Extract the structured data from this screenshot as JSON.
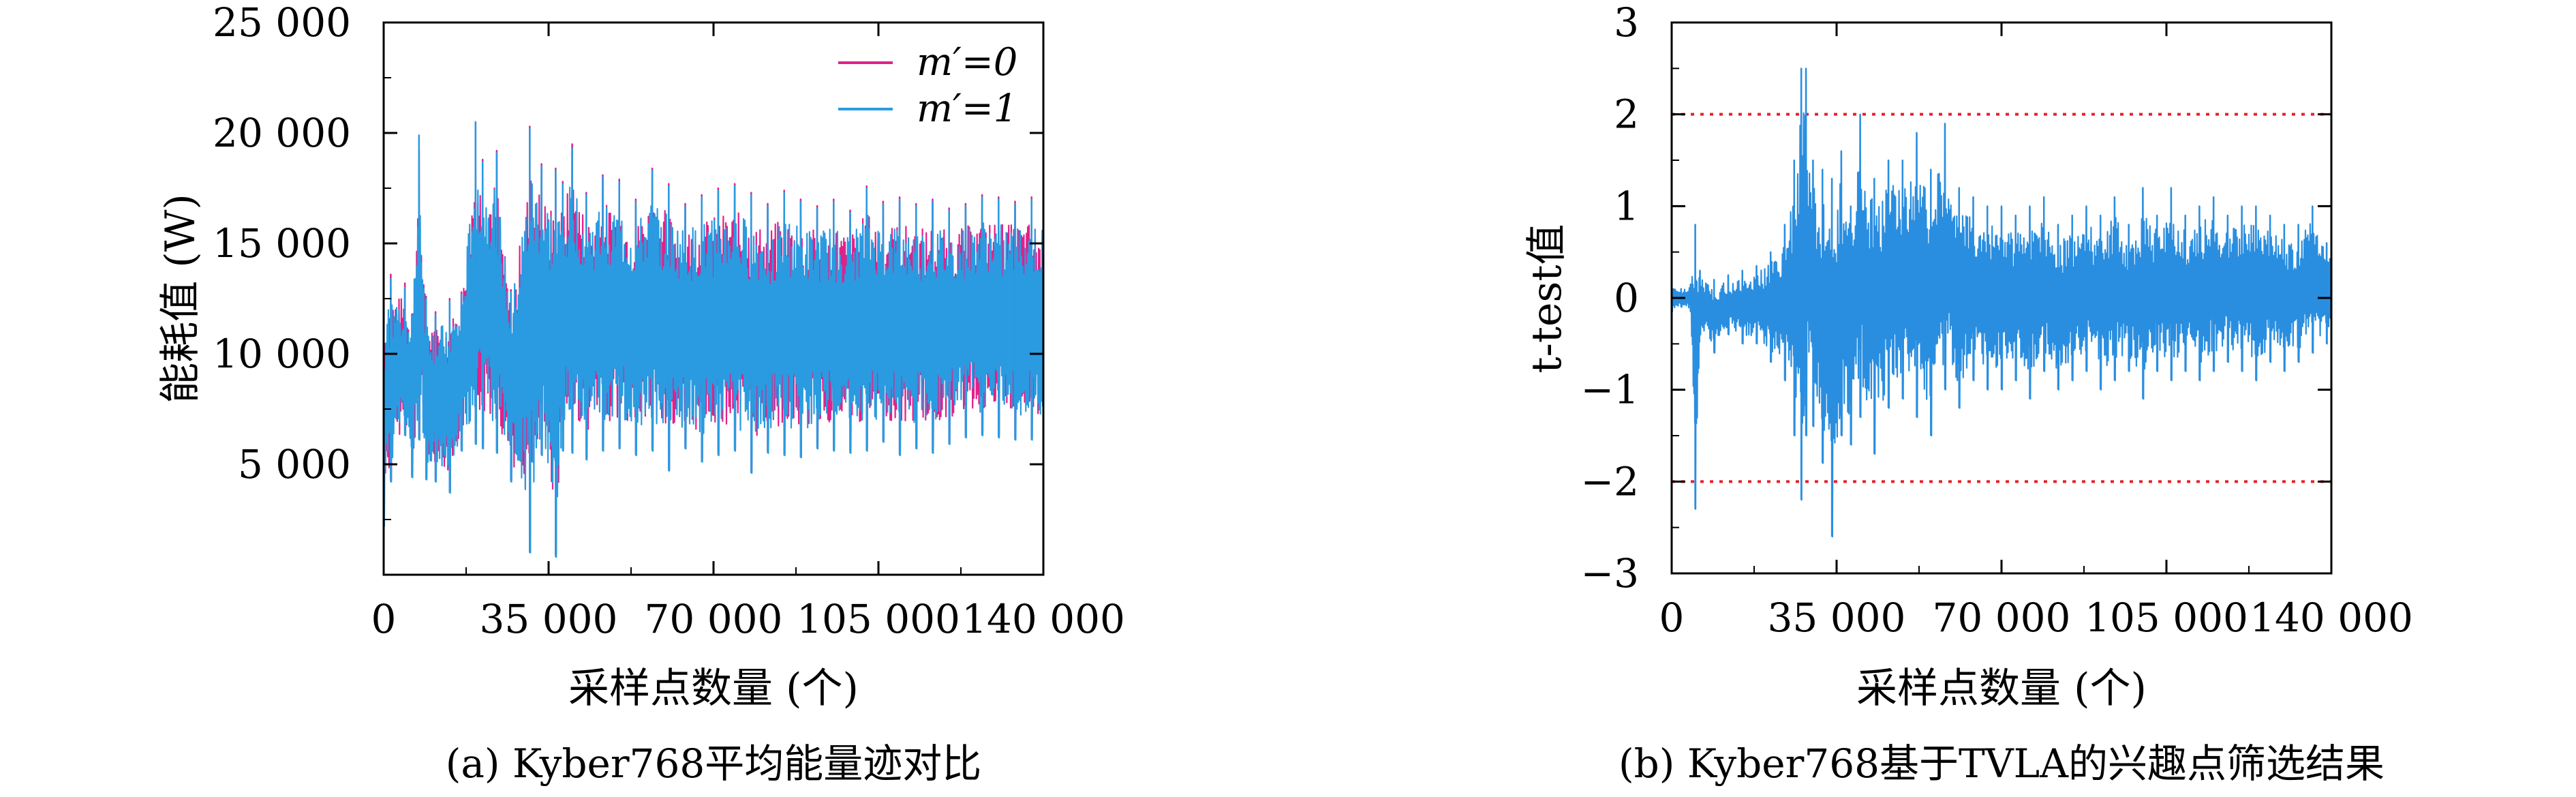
{
  "figure": {
    "caption_a": "(a) Kyber768平均能量迹对比",
    "caption_b": "(b) Kyber768基于TVLA的兴趣点筛选结果"
  },
  "chart_data": [
    {
      "type": "line",
      "xlabel": "采样点数量 (个)",
      "ylabel": "能耗值 (W)",
      "xlim": [
        0,
        140000
      ],
      "ylim": [
        0,
        25000
      ],
      "x_ticks": [
        {
          "value": 0,
          "label": "0"
        },
        {
          "value": 35000,
          "label": "35 000"
        },
        {
          "value": 70000,
          "label": "70 000"
        },
        {
          "value": 105000,
          "label": "105 000"
        },
        {
          "value": 140000,
          "label": "140 000"
        }
      ],
      "y_ticks": [
        {
          "value": 5000,
          "label": "5 000"
        },
        {
          "value": 10000,
          "label": "10 000"
        },
        {
          "value": 15000,
          "label": "15 000"
        },
        {
          "value": 20000,
          "label": "20 000"
        },
        {
          "value": 25000,
          "label": "25 000"
        }
      ],
      "legend_position": "top-right",
      "series": [
        {
          "name": "m′=0",
          "color": "#e0218a",
          "x": [
            0,
            1500,
            4500,
            6000,
            7500,
            9000,
            11000,
            14000,
            16500,
            19500,
            21000,
            24000,
            27000,
            31000,
            33500,
            36500,
            38000,
            40000,
            43000,
            46500,
            50000,
            53500,
            57000,
            60500,
            64000,
            67500,
            71000,
            74500,
            78000,
            81500,
            85000,
            88500,
            92000,
            95500,
            99000,
            102500,
            106000,
            109500,
            113000,
            116500,
            120000,
            123500,
            127000,
            130500,
            134000,
            137500,
            140000
          ],
          "y_high": [
            12400,
            13600,
            13200,
            11800,
            19200,
            12600,
            11900,
            12500,
            12800,
            20500,
            18800,
            19200,
            12900,
            20300,
            18600,
            18400,
            17800,
            19500,
            17300,
            18100,
            17900,
            17000,
            18400,
            17700,
            16800,
            17200,
            17500,
            17700,
            17300,
            16800,
            17400,
            17000,
            16700,
            17000,
            16500,
            17600,
            16900,
            17100,
            16800,
            17000,
            16600,
            16800,
            17200,
            17100,
            16900,
            17100,
            16800
          ],
          "y_low": [
            2300,
            4300,
            6400,
            4500,
            6200,
            4400,
            4300,
            3800,
            5700,
            6000,
            5800,
            5600,
            4300,
            1000,
            5500,
            900,
            5700,
            5600,
            5300,
            5700,
            5800,
            5500,
            5700,
            4800,
            5800,
            5200,
            5500,
            5700,
            4700,
            5600,
            5500,
            5400,
            5800,
            5700,
            5600,
            5700,
            6100,
            5500,
            5800,
            5600,
            6000,
            6300,
            6400,
            6300,
            6200,
            6200,
            5300
          ]
        },
        {
          "name": "m′=1",
          "color": "#2a9be0",
          "x": [
            0,
            1500,
            4500,
            6000,
            7500,
            9000,
            11000,
            14000,
            16500,
            19500,
            21000,
            24000,
            27000,
            31000,
            33500,
            36500,
            38000,
            40000,
            43000,
            46500,
            50000,
            53500,
            57000,
            60500,
            64000,
            67500,
            71000,
            74500,
            78000,
            81500,
            85000,
            88500,
            92000,
            95500,
            99000,
            102500,
            106000,
            109500,
            113000,
            116500,
            120000,
            123500,
            127000,
            130500,
            134000,
            137500,
            140000
          ],
          "y_high": [
            12300,
            13400,
            13000,
            11700,
            19900,
            12500,
            11800,
            12400,
            12700,
            20500,
            18700,
            19100,
            12800,
            20200,
            18500,
            18300,
            17700,
            19300,
            17200,
            18000,
            17800,
            16900,
            18300,
            17600,
            16700,
            17100,
            17400,
            17600,
            17200,
            16700,
            17300,
            16900,
            16600,
            16900,
            16400,
            17500,
            16800,
            17000,
            16700,
            16900,
            16500,
            16700,
            17100,
            17000,
            16800,
            17000,
            16700
          ],
          "y_low": [
            2200,
            4200,
            6300,
            4400,
            6100,
            4300,
            4200,
            3700,
            5600,
            5900,
            5700,
            5500,
            4200,
            1000,
            5400,
            800,
            5600,
            5500,
            5200,
            5600,
            5700,
            5400,
            5600,
            4700,
            5700,
            5100,
            5400,
            5600,
            4600,
            5500,
            5400,
            5300,
            5700,
            5600,
            5500,
            5600,
            6000,
            5400,
            5700,
            5500,
            5900,
            6200,
            6300,
            6200,
            6100,
            6100,
            5200
          ]
        }
      ]
    },
    {
      "type": "line",
      "xlabel": "采样点数量 (个)",
      "ylabel": "t-test值",
      "xlim": [
        0,
        140000
      ],
      "ylim": [
        -3,
        3
      ],
      "x_ticks": [
        {
          "value": 0,
          "label": "0"
        },
        {
          "value": 35000,
          "label": "35 000"
        },
        {
          "value": 70000,
          "label": "70 000"
        },
        {
          "value": 105000,
          "label": "105 000"
        },
        {
          "value": 140000,
          "label": "140 000"
        }
      ],
      "y_ticks": [
        {
          "value": -3,
          "label": "−3"
        },
        {
          "value": -2,
          "label": "−2"
        },
        {
          "value": -1,
          "label": "−1"
        },
        {
          "value": 0,
          "label": "0"
        },
        {
          "value": 1,
          "label": "1"
        },
        {
          "value": 2,
          "label": "2"
        },
        {
          "value": 3,
          "label": "3"
        }
      ],
      "thresholds": [
        2,
        -2
      ],
      "threshold_color": "#e8202a",
      "series": [
        {
          "color": "#2a8ee0",
          "x": [
            0,
            2000,
            4000,
            5000,
            6000,
            9000,
            12000,
            15000,
            18000,
            21000,
            24000,
            26000,
            27500,
            28500,
            30000,
            32000,
            34000,
            36000,
            38000,
            40000,
            43000,
            46000,
            49000,
            52000,
            55000,
            58000,
            61000,
            64000,
            67000,
            70000,
            73000,
            76000,
            79000,
            82000,
            85000,
            88000,
            91000,
            94000,
            97000,
            100000,
            103000,
            106000,
            109000,
            112000,
            115000,
            118000,
            121000,
            124000,
            127000,
            130000,
            133000,
            136000,
            139000,
            140000
          ],
          "y_high": [
            0.15,
            0.1,
            0.15,
            0.8,
            0.3,
            0.2,
            0.25,
            0.3,
            0.35,
            0.5,
            0.8,
            1.5,
            2.5,
            2.5,
            1.5,
            1.4,
            1.3,
            1.6,
            1.0,
            2.0,
            1.3,
            1.5,
            1.5,
            1.8,
            1.4,
            1.9,
            1.2,
            1.1,
            1.0,
            1.0,
            0.9,
            1.0,
            1.1,
            0.8,
            0.9,
            1.0,
            0.9,
            1.1,
            0.8,
            1.2,
            0.9,
            1.2,
            0.9,
            1.0,
            1.1,
            0.9,
            1.0,
            1.0,
            0.9,
            0.8,
            0.8,
            1.0,
            0.6,
            0.5
          ],
          "y_low": [
            -0.15,
            -0.1,
            -0.15,
            -2.3,
            -0.4,
            -0.6,
            -0.4,
            -0.5,
            -0.5,
            -0.7,
            -0.9,
            -1.5,
            -2.2,
            -1.5,
            -1.4,
            -1.8,
            -2.6,
            -1.5,
            -1.6,
            -1.3,
            -1.7,
            -1.2,
            -1.1,
            -1.3,
            -1.5,
            -1.0,
            -1.2,
            -0.9,
            -1.0,
            -1.0,
            -0.9,
            -1.1,
            -0.8,
            -1.0,
            -0.9,
            -0.8,
            -1.0,
            -0.9,
            -0.8,
            -1.1,
            -0.8,
            -0.9,
            -0.8,
            -0.9,
            -0.8,
            -0.7,
            -0.8,
            -0.9,
            -0.7,
            -0.8,
            -0.7,
            -0.6,
            -0.5,
            -0.4
          ]
        }
      ]
    }
  ]
}
